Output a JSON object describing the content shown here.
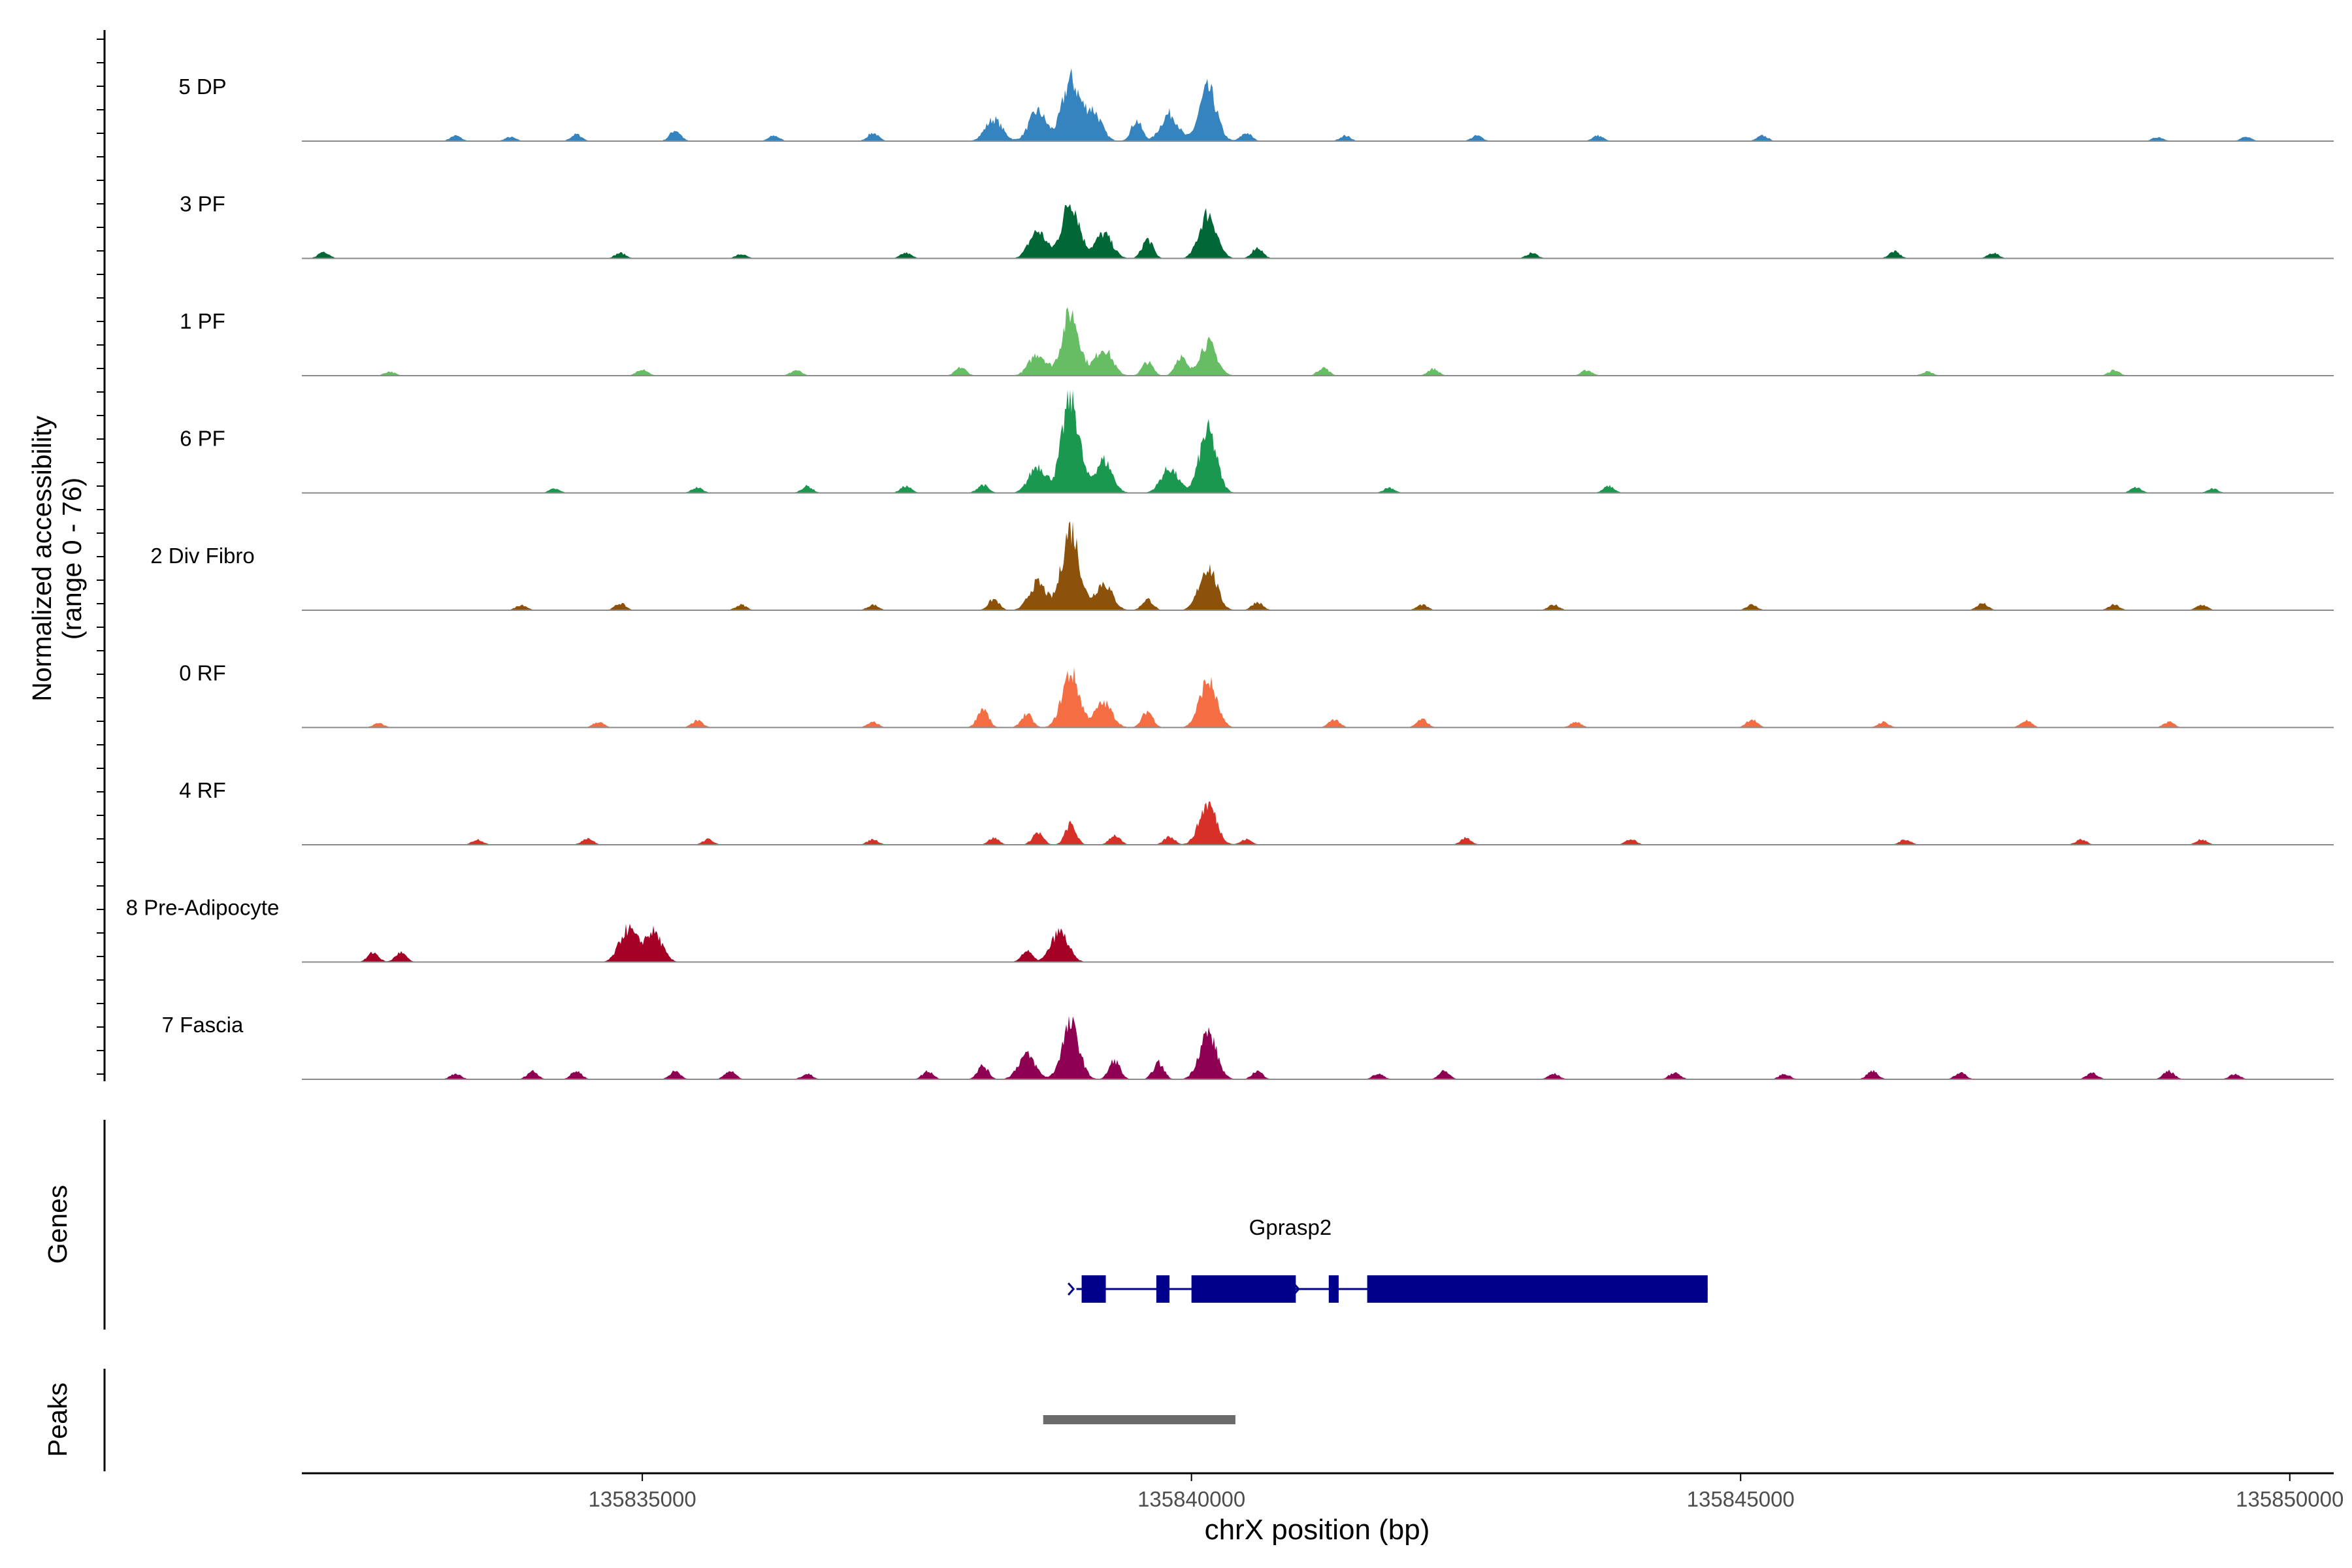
{
  "chart_data": {
    "type": "area",
    "chromosome": "chrX",
    "xlabel": "chrX position (bp)",
    "ylabel": [
      "Normalized accessibility",
      "(range 0 - 76)"
    ],
    "ylim": [
      0,
      76
    ],
    "xlim": [
      135831900,
      135850400
    ],
    "x_ticks": [
      "135835000",
      "135840000",
      "135845000",
      "135850000"
    ],
    "x_tick_values": [
      135835000,
      135840000,
      135845000,
      135850000
    ],
    "series": [
      {
        "name": "5 DP",
        "color": "#3584BF",
        "peaks": [
          [
            135833300,
            4
          ],
          [
            135833800,
            3
          ],
          [
            135834400,
            5
          ],
          [
            135835300,
            8
          ],
          [
            135836200,
            4
          ],
          [
            135837100,
            6
          ],
          [
            135838200,
            16
          ],
          [
            135838600,
            22
          ],
          [
            135838900,
            44
          ],
          [
            135839100,
            22
          ],
          [
            135839500,
            15
          ],
          [
            135839800,
            20
          ],
          [
            135840150,
            38
          ],
          [
            135840500,
            6
          ],
          [
            135841400,
            4
          ],
          [
            135842600,
            4
          ],
          [
            135843700,
            4
          ],
          [
            135845200,
            4
          ],
          [
            135848800,
            3
          ],
          [
            135849600,
            3
          ]
        ]
      },
      {
        "name": "3 PF",
        "color": "#006837",
        "peaks": [
          [
            135832100,
            5
          ],
          [
            135834800,
            4
          ],
          [
            135835900,
            3
          ],
          [
            135837400,
            4
          ],
          [
            135838600,
            20
          ],
          [
            135838900,
            42
          ],
          [
            135839200,
            18
          ],
          [
            135839600,
            14
          ],
          [
            135840150,
            33
          ],
          [
            135840600,
            8
          ],
          [
            135843100,
            4
          ],
          [
            135846400,
            5
          ],
          [
            135847300,
            4
          ]
        ]
      },
      {
        "name": "1 PF",
        "color": "#66BD63",
        "peaks": [
          [
            135832700,
            3
          ],
          [
            135835000,
            5
          ],
          [
            135836400,
            4
          ],
          [
            135837900,
            6
          ],
          [
            135838600,
            16
          ],
          [
            135838900,
            46
          ],
          [
            135839200,
            20
          ],
          [
            135839600,
            10
          ],
          [
            135839900,
            14
          ],
          [
            135840150,
            24
          ],
          [
            135841200,
            6
          ],
          [
            135842200,
            5
          ],
          [
            135843600,
            4
          ],
          [
            135846700,
            3
          ],
          [
            135848400,
            4
          ]
        ]
      },
      {
        "name": "6 PF",
        "color": "#1A9850",
        "peaks": [
          [
            135834200,
            3
          ],
          [
            135835500,
            4
          ],
          [
            135836500,
            5
          ],
          [
            135837400,
            5
          ],
          [
            135838100,
            6
          ],
          [
            135838600,
            20
          ],
          [
            135838900,
            70
          ],
          [
            135839200,
            24
          ],
          [
            135839800,
            18
          ],
          [
            135840150,
            45
          ],
          [
            135841800,
            4
          ],
          [
            135843800,
            5
          ],
          [
            135848600,
            4
          ],
          [
            135849300,
            3
          ]
        ]
      },
      {
        "name": "2 Div Fibro",
        "color": "#8C510A",
        "peaks": [
          [
            135833900,
            4
          ],
          [
            135834800,
            5
          ],
          [
            135835900,
            4
          ],
          [
            135837100,
            4
          ],
          [
            135838200,
            8
          ],
          [
            135838600,
            20
          ],
          [
            135838900,
            60
          ],
          [
            135839200,
            20
          ],
          [
            135839600,
            8
          ],
          [
            135840150,
            32
          ],
          [
            135840600,
            6
          ],
          [
            135842100,
            4
          ],
          [
            135843300,
            4
          ],
          [
            135845100,
            4
          ],
          [
            135847200,
            5
          ],
          [
            135848400,
            4
          ],
          [
            135849200,
            4
          ]
        ]
      },
      {
        "name": "0 RF",
        "color": "#F46D43",
        "peaks": [
          [
            135832600,
            3
          ],
          [
            135834600,
            4
          ],
          [
            135835500,
            5
          ],
          [
            135837100,
            4
          ],
          [
            135838100,
            14
          ],
          [
            135838500,
            10
          ],
          [
            135838900,
            40
          ],
          [
            135839200,
            18
          ],
          [
            135839600,
            12
          ],
          [
            135840150,
            34
          ],
          [
            135841300,
            6
          ],
          [
            135842100,
            6
          ],
          [
            135843500,
            4
          ],
          [
            135845100,
            6
          ],
          [
            135846300,
            4
          ],
          [
            135847600,
            5
          ],
          [
            135848900,
            4
          ]
        ]
      },
      {
        "name": "4 RF",
        "color": "#D73027",
        "peaks": [
          [
            135833500,
            4
          ],
          [
            135834500,
            5
          ],
          [
            135835600,
            4
          ],
          [
            135837100,
            4
          ],
          [
            135838200,
            5
          ],
          [
            135838600,
            9
          ],
          [
            135838900,
            15
          ],
          [
            135839300,
            7
          ],
          [
            135839800,
            6
          ],
          [
            135840150,
            30
          ],
          [
            135840500,
            4
          ],
          [
            135842500,
            5
          ],
          [
            135844000,
            4
          ],
          [
            135846500,
            4
          ],
          [
            135848100,
            4
          ],
          [
            135849200,
            4
          ]
        ]
      },
      {
        "name": "8 Pre-Adipocyte",
        "color": "#A50026",
        "peaks": [
          [
            135832550,
            7
          ],
          [
            135832800,
            7
          ],
          [
            135834870,
            24
          ],
          [
            135835100,
            22
          ],
          [
            135838500,
            8
          ],
          [
            135838800,
            22
          ]
        ]
      },
      {
        "name": "7 Fascia",
        "color": "#8E0152",
        "peaks": [
          [
            135833300,
            4
          ],
          [
            135834000,
            6
          ],
          [
            135834400,
            6
          ],
          [
            135835300,
            6
          ],
          [
            135835800,
            6
          ],
          [
            135836500,
            4
          ],
          [
            135837600,
            6
          ],
          [
            135838100,
            10
          ],
          [
            135838500,
            18
          ],
          [
            135838900,
            40
          ],
          [
            135839300,
            14
          ],
          [
            135839700,
            12
          ],
          [
            135840150,
            34
          ],
          [
            135840600,
            6
          ],
          [
            135841700,
            4
          ],
          [
            135842300,
            6
          ],
          [
            135843300,
            4
          ],
          [
            135844400,
            5
          ],
          [
            135845400,
            4
          ],
          [
            135846200,
            6
          ],
          [
            135847000,
            5
          ],
          [
            135848200,
            5
          ],
          [
            135848900,
            6
          ],
          [
            135849500,
            4
          ]
        ]
      }
    ],
    "genes_track": {
      "label": "Genes",
      "gene_name": "Gprasp2",
      "strand": "+",
      "start": 135839000,
      "end": 135844700,
      "exons": [
        [
          135839000,
          135839220
        ],
        [
          135839680,
          135839800
        ],
        [
          135840000,
          135840950
        ],
        [
          135841250,
          135841340
        ],
        [
          135841600,
          135844700
        ]
      ]
    },
    "peaks_track": {
      "label": "Peaks",
      "regions": [
        [
          135838650,
          135840400
        ]
      ]
    }
  }
}
